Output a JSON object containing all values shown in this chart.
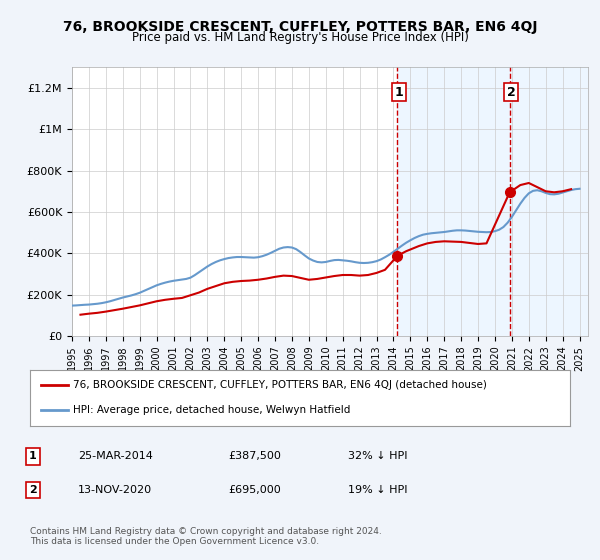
{
  "title": "76, BROOKSIDE CRESCENT, CUFFLEY, POTTERS BAR, EN6 4QJ",
  "subtitle": "Price paid vs. HM Land Registry's House Price Index (HPI)",
  "ylim": [
    0,
    1300000
  ],
  "yticks": [
    0,
    200000,
    400000,
    600000,
    800000,
    1000000,
    1200000
  ],
  "ytick_labels": [
    "£0",
    "£200K",
    "£400K",
    "£600K",
    "£800K",
    "£1M",
    "£1.2M"
  ],
  "xlim_start": 1995.0,
  "xlim_end": 2025.5,
  "xticks": [
    1995,
    1996,
    1997,
    1998,
    1999,
    2000,
    2001,
    2002,
    2003,
    2004,
    2005,
    2006,
    2007,
    2008,
    2009,
    2010,
    2011,
    2012,
    2013,
    2014,
    2015,
    2016,
    2017,
    2018,
    2019,
    2020,
    2021,
    2022,
    2023,
    2024,
    2025
  ],
  "bg_color": "#f0f4fa",
  "plot_bg_color": "#ffffff",
  "grid_color": "#cccccc",
  "hpi_color": "#6699cc",
  "price_color": "#cc0000",
  "vline_color": "#cc0000",
  "vline1_x": 2014.23,
  "vline2_x": 2020.87,
  "marker1_x": 2014.23,
  "marker1_y": 387500,
  "marker2_x": 2020.87,
  "marker2_y": 695000,
  "label1": "1",
  "label2": "2",
  "legend_property_label": "76, BROOKSIDE CRESCENT, CUFFLEY, POTTERS BAR, EN6 4QJ (detached house)",
  "legend_hpi_label": "HPI: Average price, detached house, Welwyn Hatfield",
  "table_row1": [
    "1",
    "25-MAR-2014",
    "£387,500",
    "32% ↓ HPI"
  ],
  "table_row2": [
    "2",
    "13-NOV-2020",
    "£695,000",
    "19% ↓ HPI"
  ],
  "footer": "Contains HM Land Registry data © Crown copyright and database right 2024.\nThis data is licensed under the Open Government Licence v3.0.",
  "hpi_data_x": [
    1995.0,
    1995.25,
    1995.5,
    1995.75,
    1996.0,
    1996.25,
    1996.5,
    1996.75,
    1997.0,
    1997.25,
    1997.5,
    1997.75,
    1998.0,
    1998.25,
    1998.5,
    1998.75,
    1999.0,
    1999.25,
    1999.5,
    1999.75,
    2000.0,
    2000.25,
    2000.5,
    2000.75,
    2001.0,
    2001.25,
    2001.5,
    2001.75,
    2002.0,
    2002.25,
    2002.5,
    2002.75,
    2003.0,
    2003.25,
    2003.5,
    2003.75,
    2004.0,
    2004.25,
    2004.5,
    2004.75,
    2005.0,
    2005.25,
    2005.5,
    2005.75,
    2006.0,
    2006.25,
    2006.5,
    2006.75,
    2007.0,
    2007.25,
    2007.5,
    2007.75,
    2008.0,
    2008.25,
    2008.5,
    2008.75,
    2009.0,
    2009.25,
    2009.5,
    2009.75,
    2010.0,
    2010.25,
    2010.5,
    2010.75,
    2011.0,
    2011.25,
    2011.5,
    2011.75,
    2012.0,
    2012.25,
    2012.5,
    2012.75,
    2013.0,
    2013.25,
    2013.5,
    2013.75,
    2014.0,
    2014.25,
    2014.5,
    2014.75,
    2015.0,
    2015.25,
    2015.5,
    2015.75,
    2016.0,
    2016.25,
    2016.5,
    2016.75,
    2017.0,
    2017.25,
    2017.5,
    2017.75,
    2018.0,
    2018.25,
    2018.5,
    2018.75,
    2019.0,
    2019.25,
    2019.5,
    2019.75,
    2020.0,
    2020.25,
    2020.5,
    2020.75,
    2021.0,
    2021.25,
    2021.5,
    2021.75,
    2022.0,
    2022.25,
    2022.5,
    2022.75,
    2023.0,
    2023.25,
    2023.5,
    2023.75,
    2024.0,
    2024.25,
    2024.5,
    2024.75,
    2025.0
  ],
  "hpi_data_y": [
    147000,
    148000,
    149500,
    151000,
    152000,
    154000,
    156000,
    159000,
    163000,
    168000,
    174000,
    180000,
    186000,
    191000,
    196000,
    202000,
    209000,
    218000,
    227000,
    236000,
    245000,
    252000,
    258000,
    263000,
    267000,
    270000,
    273000,
    276000,
    282000,
    294000,
    308000,
    322000,
    336000,
    348000,
    358000,
    366000,
    372000,
    377000,
    380000,
    382000,
    382000,
    381000,
    380000,
    379000,
    381000,
    386000,
    393000,
    402000,
    412000,
    422000,
    428000,
    430000,
    428000,
    420000,
    406000,
    390000,
    375000,
    365000,
    358000,
    356000,
    358000,
    363000,
    367000,
    368000,
    366000,
    364000,
    361000,
    357000,
    354000,
    353000,
    354000,
    357000,
    362000,
    370000,
    381000,
    393000,
    407000,
    422000,
    437000,
    451000,
    463000,
    474000,
    483000,
    490000,
    494000,
    497000,
    499000,
    501000,
    503000,
    506000,
    509000,
    511000,
    511000,
    510000,
    508000,
    506000,
    504000,
    503000,
    502000,
    503000,
    507000,
    514000,
    527000,
    548000,
    576000,
    608000,
    640000,
    668000,
    690000,
    702000,
    705000,
    700000,
    692000,
    686000,
    685000,
    688000,
    694000,
    700000,
    706000,
    710000,
    712000
  ],
  "price_data_x": [
    1995.5,
    1996.0,
    1996.5,
    1997.0,
    1997.5,
    1998.0,
    1999.0,
    1999.5,
    2000.0,
    2000.5,
    2001.0,
    2001.5,
    2002.5,
    2003.0,
    2004.0,
    2004.5,
    2005.0,
    2005.5,
    2006.0,
    2006.5,
    2007.0,
    2007.5,
    2008.0,
    2009.0,
    2009.5,
    2010.0,
    2010.5,
    2011.0,
    2011.5,
    2012.0,
    2012.5,
    2013.0,
    2013.5,
    2014.23,
    2014.75,
    2015.5,
    2016.0,
    2016.5,
    2017.0,
    2018.0,
    2018.5,
    2019.0,
    2019.5,
    2020.87,
    2021.5,
    2022.0,
    2022.5,
    2023.0,
    2023.5,
    2024.0,
    2024.5
  ],
  "price_data_y": [
    103000,
    108000,
    112000,
    118000,
    125000,
    132000,
    148000,
    158000,
    168000,
    175000,
    180000,
    184000,
    210000,
    228000,
    255000,
    262000,
    266000,
    268000,
    272000,
    278000,
    286000,
    292000,
    290000,
    272000,
    276000,
    283000,
    290000,
    295000,
    295000,
    292000,
    295000,
    305000,
    320000,
    387500,
    410000,
    435000,
    448000,
    455000,
    458000,
    455000,
    450000,
    445000,
    448000,
    695000,
    730000,
    740000,
    720000,
    700000,
    695000,
    700000,
    710000
  ]
}
